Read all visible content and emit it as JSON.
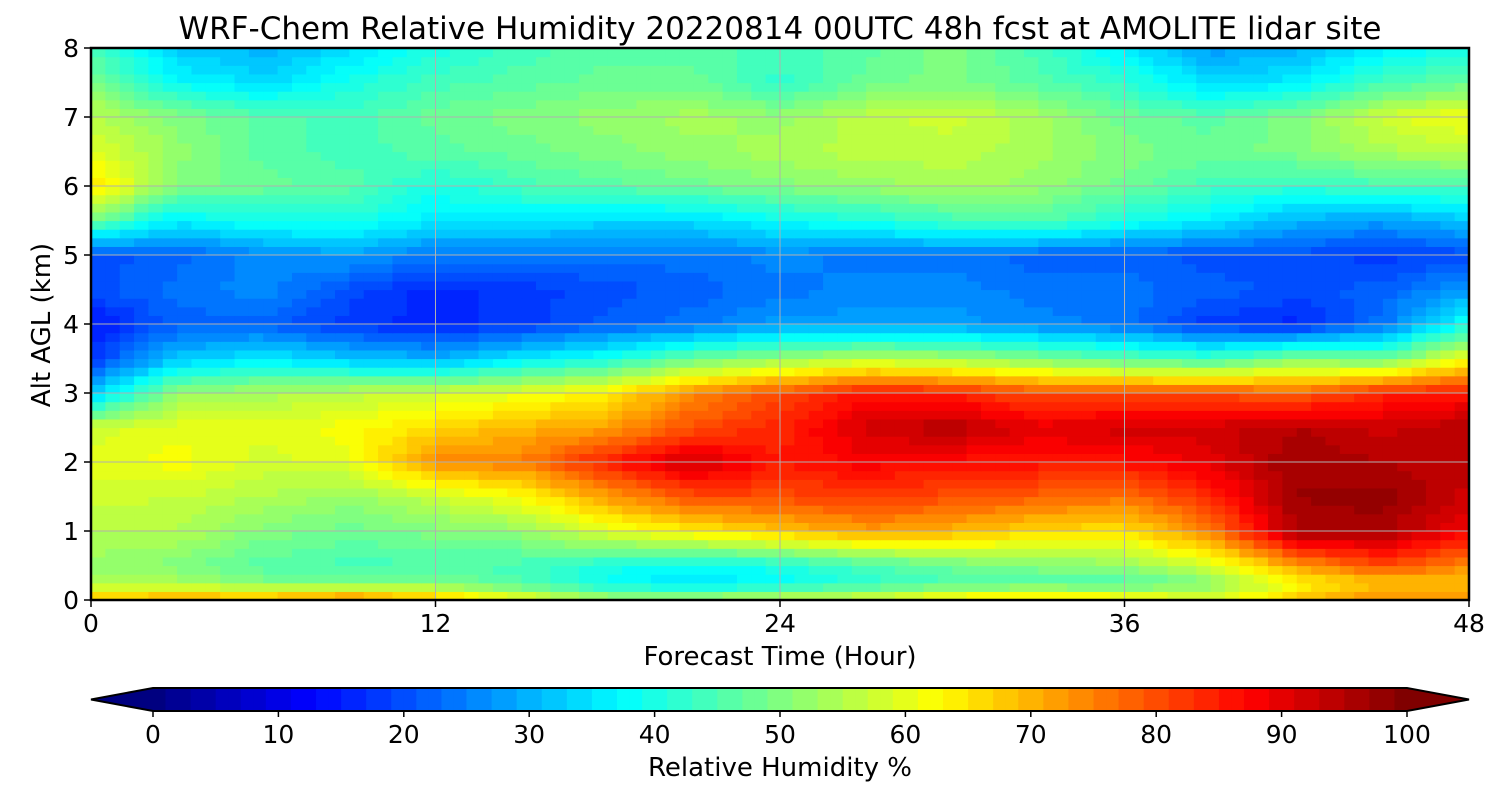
{
  "chart_data": {
    "type": "heatmap",
    "title": "WRF-Chem Relative Humidity 20220814 00UTC 48h fcst at AMOLITE lidar site",
    "xlabel": "Forecast Time (Hour)",
    "ylabel": "Alt AGL (km)",
    "xlim": [
      0,
      48
    ],
    "ylim": [
      0,
      8
    ],
    "xticks": [
      0,
      12,
      24,
      36,
      48
    ],
    "yticks": [
      0,
      1,
      2,
      3,
      4,
      5,
      6,
      7,
      8
    ],
    "grid": true,
    "colormap": "jet",
    "colorbar": {
      "label": "Relative Humidity %",
      "min": 0,
      "max": 100,
      "ticks": [
        0,
        10,
        20,
        30,
        40,
        50,
        60,
        70,
        80,
        90,
        100
      ],
      "extend": "both",
      "orientation": "horizontal"
    },
    "x": [
      0,
      3,
      6,
      9,
      12,
      15,
      18,
      21,
      24,
      27,
      30,
      33,
      36,
      39,
      42,
      45,
      48
    ],
    "y": [
      0,
      0.25,
      0.5,
      1,
      1.5,
      2,
      2.5,
      3,
      3.5,
      4,
      4.5,
      5,
      5.5,
      6,
      6.5,
      7,
      7.5,
      8
    ],
    "z": [
      [
        70,
        72,
        72,
        76,
        70,
        62,
        55,
        55,
        58,
        60,
        66,
        68,
        66,
        60,
        68,
        74,
        74
      ],
      [
        55,
        54,
        50,
        50,
        50,
        45,
        38,
        34,
        38,
        42,
        45,
        46,
        45,
        50,
        62,
        68,
        68
      ],
      [
        52,
        50,
        46,
        44,
        45,
        44,
        40,
        38,
        40,
        44,
        48,
        50,
        52,
        58,
        72,
        80,
        74
      ],
      [
        55,
        55,
        50,
        48,
        50,
        52,
        60,
        64,
        68,
        72,
        70,
        66,
        65,
        75,
        96,
        96,
        88
      ],
      [
        58,
        57,
        55,
        52,
        57,
        62,
        72,
        80,
        80,
        82,
        80,
        78,
        76,
        84,
        97,
        98,
        92
      ],
      [
        60,
        62,
        58,
        60,
        74,
        75,
        85,
        93,
        85,
        88,
        86,
        86,
        86,
        90,
        97,
        95,
        94
      ],
      [
        58,
        60,
        60,
        62,
        66,
        70,
        72,
        80,
        84,
        92,
        95,
        90,
        92,
        92,
        95,
        92,
        95
      ],
      [
        32,
        52,
        54,
        56,
        58,
        60,
        64,
        74,
        80,
        86,
        84,
        80,
        80,
        80,
        78,
        84,
        86
      ],
      [
        18,
        32,
        36,
        32,
        30,
        36,
        40,
        48,
        52,
        56,
        54,
        50,
        46,
        44,
        50,
        48,
        62
      ],
      [
        14,
        22,
        22,
        18,
        16,
        18,
        22,
        24,
        28,
        28,
        28,
        26,
        24,
        18,
        16,
        24,
        40
      ],
      [
        20,
        24,
        26,
        20,
        16,
        18,
        20,
        22,
        24,
        26,
        26,
        24,
        24,
        22,
        20,
        22,
        28
      ],
      [
        20,
        22,
        26,
        28,
        24,
        24,
        24,
        24,
        26,
        24,
        24,
        22,
        22,
        20,
        20,
        18,
        20
      ],
      [
        48,
        36,
        40,
        40,
        36,
        36,
        34,
        34,
        38,
        40,
        44,
        46,
        40,
        36,
        30,
        28,
        32
      ],
      [
        66,
        50,
        48,
        46,
        40,
        44,
        46,
        48,
        50,
        52,
        54,
        52,
        48,
        44,
        42,
        44,
        44
      ],
      [
        60,
        52,
        46,
        44,
        46,
        48,
        50,
        52,
        54,
        56,
        56,
        54,
        50,
        48,
        50,
        54,
        56
      ],
      [
        56,
        50,
        46,
        44,
        48,
        50,
        52,
        54,
        52,
        56,
        58,
        54,
        48,
        46,
        50,
        58,
        62
      ],
      [
        50,
        38,
        34,
        40,
        44,
        46,
        48,
        48,
        42,
        48,
        50,
        46,
        42,
        34,
        36,
        44,
        48
      ],
      [
        44,
        32,
        30,
        34,
        40,
        44,
        46,
        46,
        44,
        46,
        50,
        44,
        36,
        28,
        30,
        36,
        40
      ]
    ]
  }
}
